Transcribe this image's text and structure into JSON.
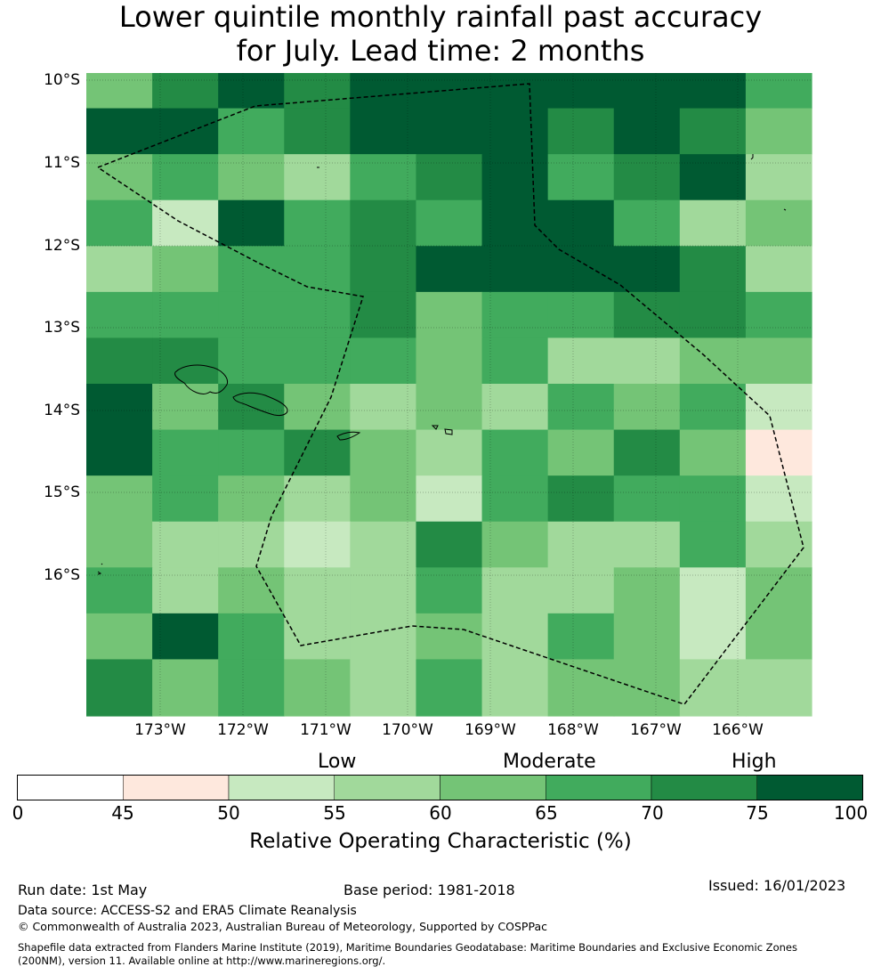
{
  "title_line1": "Lower quintile monthly rainfall past accuracy",
  "title_line2": "for July. Lead time: 2 months",
  "map": {
    "lat_labels": [
      "10°S",
      "11°S",
      "12°S",
      "13°S",
      "14°S",
      "15°S",
      "16°S"
    ],
    "lon_labels": [
      "173°W",
      "172°W",
      "171°W",
      "170°W",
      "169°W",
      "168°W",
      "167°W",
      "166°W"
    ],
    "region": "Samoa",
    "grid_note": "ROC score category indices per cell (0=<45,1=45-50,2=50-55,3=55-60,4=60-65,5=65-70,6=70-75,7=75-100)",
    "grid": [
      [
        4,
        6,
        7,
        6,
        7,
        7,
        7,
        7,
        7,
        7,
        5
      ],
      [
        7,
        7,
        5,
        6,
        7,
        7,
        7,
        6,
        7,
        6,
        4
      ],
      [
        4,
        5,
        4,
        3,
        5,
        6,
        7,
        5,
        6,
        7,
        3
      ],
      [
        5,
        2,
        7,
        5,
        6,
        5,
        7,
        7,
        5,
        3,
        4
      ],
      [
        3,
        4,
        5,
        5,
        6,
        7,
        7,
        7,
        7,
        6,
        3
      ],
      [
        5,
        5,
        5,
        5,
        6,
        4,
        5,
        5,
        6,
        6,
        5
      ],
      [
        6,
        6,
        5,
        5,
        5,
        4,
        5,
        3,
        3,
        4,
        4
      ],
      [
        7,
        4,
        6,
        4,
        3,
        4,
        3,
        5,
        4,
        5,
        2
      ],
      [
        7,
        5,
        5,
        6,
        4,
        3,
        5,
        4,
        6,
        4,
        1
      ],
      [
        4,
        5,
        4,
        3,
        4,
        2,
        5,
        6,
        5,
        5,
        2
      ],
      [
        4,
        3,
        3,
        2,
        3,
        6,
        4,
        3,
        3,
        5,
        3
      ],
      [
        5,
        3,
        4,
        3,
        3,
        5,
        3,
        3,
        4,
        2,
        4
      ],
      [
        4,
        7,
        5,
        3,
        3,
        4,
        3,
        5,
        4,
        2,
        4
      ],
      [
        6,
        4,
        5,
        4,
        3,
        5,
        3,
        4,
        4,
        3,
        3
      ]
    ]
  },
  "colorbar": {
    "category_labels": [
      "Low",
      "Moderate",
      "High"
    ],
    "ticks": [
      "0",
      "45",
      "50",
      "55",
      "60",
      "65",
      "70",
      "75",
      "100"
    ],
    "colors": [
      "#ffffff",
      "#fee8dd",
      "#c7e9c0",
      "#a1d99b",
      "#74c476",
      "#41ab5d",
      "#238b45",
      "#005a32"
    ],
    "label": "Relative Operating Characteristic (%)"
  },
  "footer": {
    "run_date": "Run date: 1st May",
    "base_period": "Base period: 1981-2018",
    "issued": "Issued: 16/01/2023",
    "data_source": "Data source: ACCESS-S2 and ERA5 Climate Reanalysis",
    "copyright": "© Commonwealth of Australia 2023, Australian Bureau of Meteorology, Supported by COSPPac",
    "shapefile_line1": "Shapefile data extracted from Flanders Marine Institute (2019), Maritime Boundaries Geodatabase: Maritime Boundaries and Exclusive Economic Zones",
    "shapefile_line2": "(200NM), version 11. Available online at http://www.marineregions.org/."
  }
}
